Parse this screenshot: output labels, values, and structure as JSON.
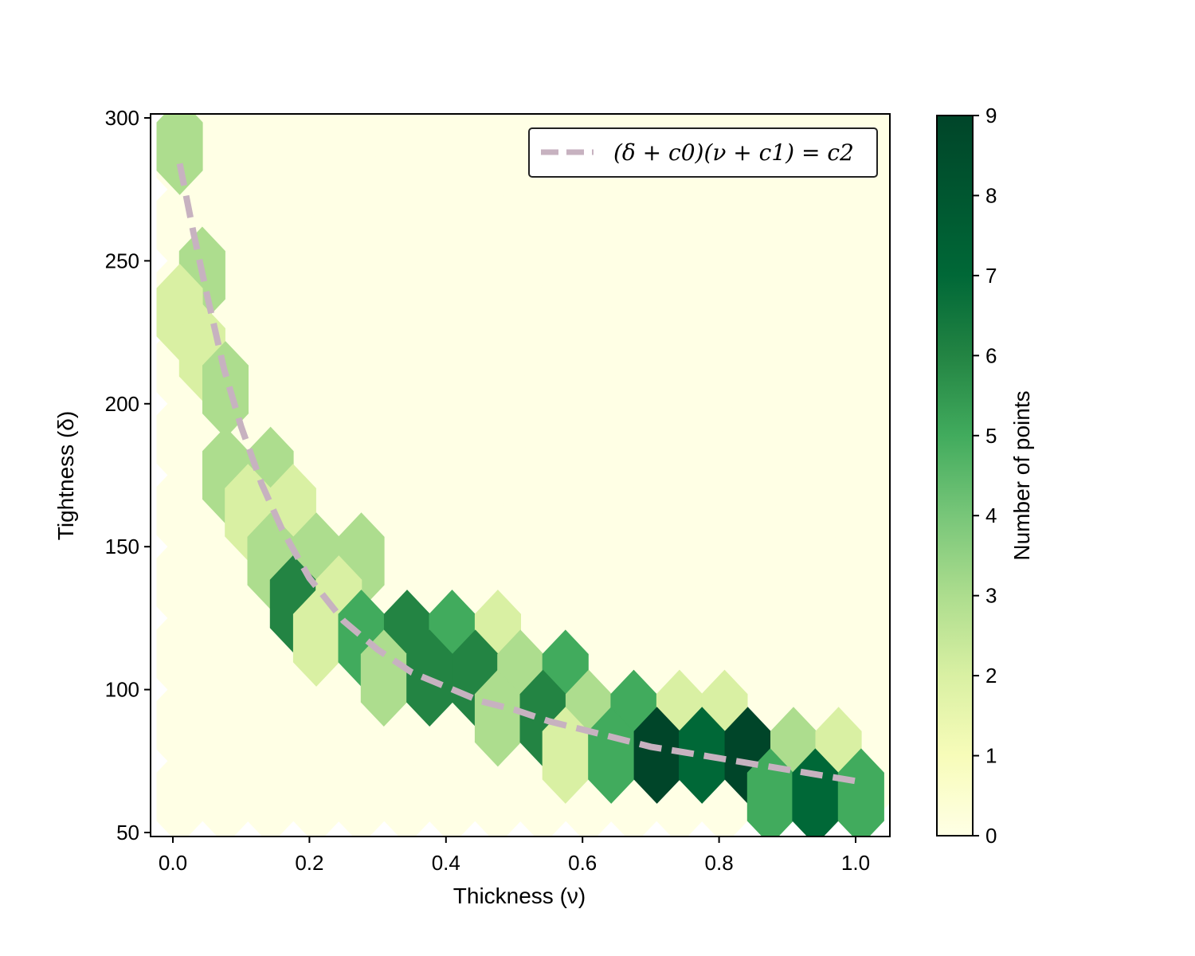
{
  "chart_data": {
    "type": "hexbin",
    "xlabel": "Thickness (ν)",
    "ylabel": "Tightness (δ)",
    "xlim": [
      -0.03,
      1.05
    ],
    "ylim": [
      49,
      302
    ],
    "x_ticks": [
      "0.0",
      "0.2",
      "0.4",
      "0.6",
      "0.8",
      "1.0"
    ],
    "y_ticks": [
      "50",
      "100",
      "150",
      "200",
      "250",
      "300"
    ],
    "colorbar": {
      "label": "Number of points",
      "colormap": "YlGn",
      "range": [
        0,
        9
      ],
      "ticks": [
        "0",
        "1",
        "2",
        "3",
        "4",
        "5",
        "6",
        "7",
        "8",
        "9"
      ]
    },
    "bin_grid": {
      "x_centers_even_rows": [
        0.01,
        0.077,
        0.143,
        0.21,
        0.276,
        0.343,
        0.409,
        0.476,
        0.542,
        0.609,
        0.675,
        0.742,
        0.808,
        0.875,
        0.941,
        1.008
      ],
      "y_rows": [
        62.5,
        87.5,
        112.5,
        137.5,
        162.5,
        187.5,
        212.5,
        237.5,
        262.5,
        287.5
      ],
      "odd_row_offset": 0.0333,
      "y_half_row_offset": 12.5
    },
    "nonzero_bins": [
      {
        "x": 0.01,
        "y": 290,
        "count": 3
      },
      {
        "x": 0.043,
        "y": 245,
        "count": 3
      },
      {
        "x": 0.01,
        "y": 232,
        "count": 2
      },
      {
        "x": 0.043,
        "y": 218,
        "count": 2
      },
      {
        "x": 0.077,
        "y": 205,
        "count": 3
      },
      {
        "x": 0.077,
        "y": 175,
        "count": 3
      },
      {
        "x": 0.143,
        "y": 175,
        "count": 3
      },
      {
        "x": 0.11,
        "y": 162,
        "count": 2
      },
      {
        "x": 0.176,
        "y": 162,
        "count": 2
      },
      {
        "x": 0.143,
        "y": 145,
        "count": 3
      },
      {
        "x": 0.21,
        "y": 145,
        "count": 3
      },
      {
        "x": 0.276,
        "y": 145,
        "count": 3
      },
      {
        "x": 0.176,
        "y": 130,
        "count": 6
      },
      {
        "x": 0.243,
        "y": 130,
        "count": 2
      },
      {
        "x": 0.21,
        "y": 118,
        "count": 2
      },
      {
        "x": 0.276,
        "y": 118,
        "count": 5
      },
      {
        "x": 0.343,
        "y": 118,
        "count": 6
      },
      {
        "x": 0.409,
        "y": 118,
        "count": 5
      },
      {
        "x": 0.476,
        "y": 118,
        "count": 2
      },
      {
        "x": 0.309,
        "y": 104,
        "count": 3
      },
      {
        "x": 0.376,
        "y": 104,
        "count": 6
      },
      {
        "x": 0.443,
        "y": 104,
        "count": 6
      },
      {
        "x": 0.509,
        "y": 104,
        "count": 3
      },
      {
        "x": 0.575,
        "y": 104,
        "count": 5
      },
      {
        "x": 0.476,
        "y": 90,
        "count": 3
      },
      {
        "x": 0.542,
        "y": 90,
        "count": 6
      },
      {
        "x": 0.609,
        "y": 90,
        "count": 3
      },
      {
        "x": 0.675,
        "y": 90,
        "count": 5
      },
      {
        "x": 0.742,
        "y": 90,
        "count": 2
      },
      {
        "x": 0.808,
        "y": 90,
        "count": 2
      },
      {
        "x": 0.575,
        "y": 77,
        "count": 2
      },
      {
        "x": 0.642,
        "y": 77,
        "count": 5
      },
      {
        "x": 0.709,
        "y": 77,
        "count": 9
      },
      {
        "x": 0.775,
        "y": 77,
        "count": 7
      },
      {
        "x": 0.842,
        "y": 77,
        "count": 9
      },
      {
        "x": 0.909,
        "y": 77,
        "count": 3
      },
      {
        "x": 0.975,
        "y": 77,
        "count": 2
      },
      {
        "x": 0.875,
        "y": 62.5,
        "count": 5
      },
      {
        "x": 0.941,
        "y": 62.5,
        "count": 7
      },
      {
        "x": 1.008,
        "y": 62.5,
        "count": 5
      }
    ],
    "fit_curve": {
      "legend": "(δ + c0)(ν + c1) = c2",
      "color": "#c7b2c0",
      "style": "dashed",
      "x": [
        0.01,
        0.03,
        0.05,
        0.075,
        0.1,
        0.13,
        0.16,
        0.2,
        0.25,
        0.3,
        0.35,
        0.4,
        0.45,
        0.5,
        0.55,
        0.6,
        0.65,
        0.7,
        0.75,
        0.8,
        0.85,
        0.9,
        0.95,
        1.0
      ],
      "y": [
        284,
        260,
        238,
        212,
        192,
        172,
        156,
        139,
        124,
        114,
        106,
        101,
        96,
        93,
        89,
        86,
        83,
        80,
        78,
        76,
        74,
        72,
        70,
        68
      ]
    },
    "legend_position": "top-right",
    "grid": false
  }
}
